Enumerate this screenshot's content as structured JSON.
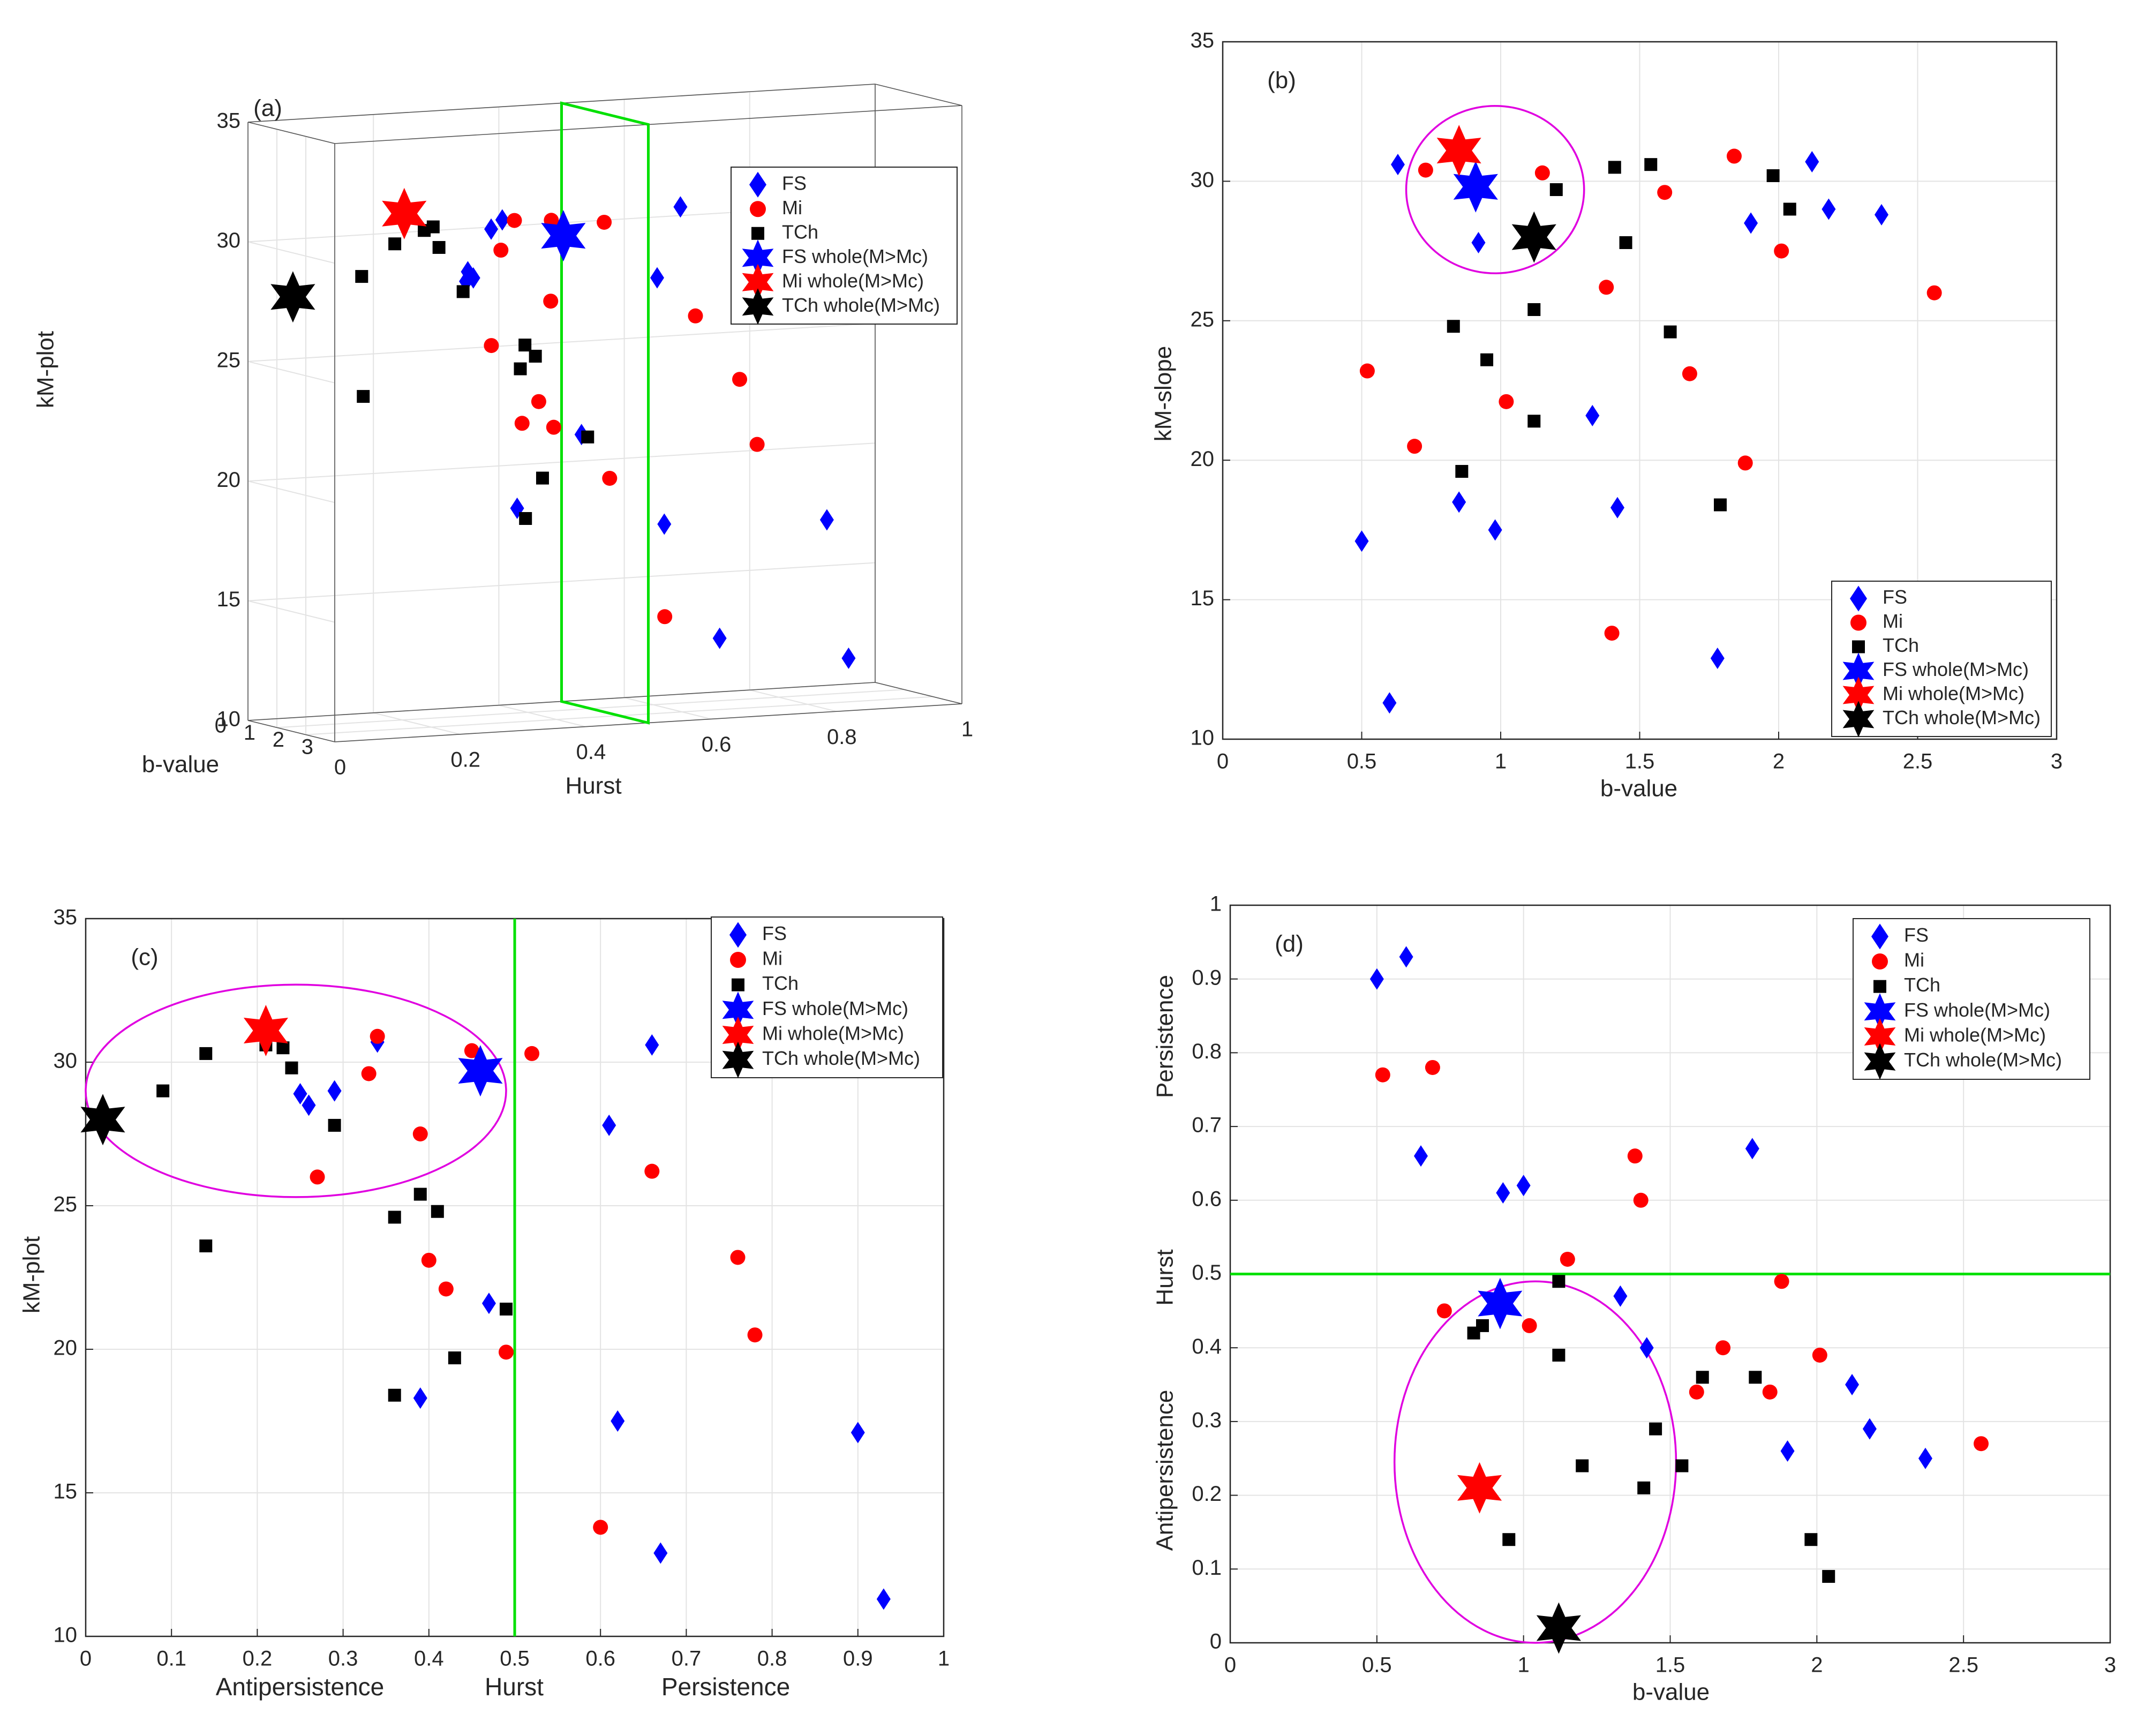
{
  "colors": {
    "FS": "#0000ff",
    "Mi": "#ff0000",
    "TCh": "#000000",
    "line": "#00e000",
    "ellipse": "#e000e0",
    "grid": "#e3e3e3"
  },
  "legend": [
    {
      "key": "FS",
      "label": "FS",
      "marker": "diamond"
    },
    {
      "key": "Mi",
      "label": "Mi",
      "marker": "circle"
    },
    {
      "key": "TCh",
      "label": "TCh",
      "marker": "square"
    },
    {
      "key": "FS",
      "label": "FS whole(M>Mc)",
      "marker": "star"
    },
    {
      "key": "Mi",
      "label": "Mi whole(M>Mc)",
      "marker": "star"
    },
    {
      "key": "TCh",
      "label": "TCh whole(M>Mc)",
      "marker": "star"
    }
  ],
  "chart_data": [
    {
      "id": "a",
      "type": "scatter3d",
      "title": "(a)",
      "xlabel": "Hurst",
      "ylabel": "b-value",
      "zlabel": "kM-plot",
      "xlim": [
        0,
        1
      ],
      "ylim": [
        0,
        3
      ],
      "zlim": [
        10,
        35
      ],
      "xticks": [
        "0",
        "0.2",
        "0.4",
        "0.6",
        "0.8",
        "1"
      ],
      "yticks": [
        "0",
        "1",
        "2",
        "3"
      ],
      "zticks": [
        "10",
        "15",
        "20",
        "25",
        "30",
        "35"
      ],
      "plane": {
        "hurst": 0.5
      },
      "series": [
        {
          "name": "FS",
          "marker": "diamond",
          "points": [
            [
              0.9,
              0.5,
              17.1
            ],
            [
              0.93,
              0.6,
              11.3
            ],
            [
              0.61,
              0.92,
              27.8
            ],
            [
              0.66,
              0.64,
              30.6
            ],
            [
              0.62,
              0.95,
              17.5
            ],
            [
              0.67,
              1.78,
              12.9
            ],
            [
              0.47,
              1.34,
              21.6
            ],
            [
              0.39,
              0.85,
              18.5
            ],
            [
              0.26,
              1.9,
              28.5
            ],
            [
              0.25,
              2.18,
              29.0
            ],
            [
              0.29,
              2.12,
              30.7
            ],
            [
              0.25,
              2.37,
              28.8
            ],
            [
              0.34,
              1.42,
              30.8
            ]
          ]
        },
        {
          "name": "Mi",
          "marker": "circle",
          "points": [
            [
              0.76,
              0.52,
              23.2
            ],
            [
              0.78,
              0.69,
              20.5
            ],
            [
              0.6,
              1.4,
              13.8
            ],
            [
              0.66,
              1.16,
              26.2
            ],
            [
              0.52,
              1.04,
              30.3
            ],
            [
              0.45,
              0.73,
              30.4
            ],
            [
              0.39,
              1.02,
              22.1
            ],
            [
              0.4,
              1.38,
              23.1
            ],
            [
              0.33,
              1.59,
              29.6
            ],
            [
              0.34,
              1.84,
              30.9
            ],
            [
              0.27,
              2.56,
              26.0
            ],
            [
              0.39,
              2.01,
              27.5
            ],
            [
              0.49,
              1.88,
              19.9
            ],
            [
              0.41,
              1.68,
              22.1
            ]
          ]
        },
        {
          "name": "TCh",
          "marker": "square",
          "points": [
            [
              0.14,
              0.95,
              23.6
            ],
            [
              0.09,
              1.98,
              29.0
            ],
            [
              0.14,
              2.04,
              30.3
            ],
            [
              0.21,
              1.54,
              30.6
            ],
            [
              0.24,
              1.4,
              29.8
            ],
            [
              0.29,
              1.15,
              27.8
            ],
            [
              0.24,
              1.2,
              30.6
            ],
            [
              0.42,
              0.83,
              24.8
            ],
            [
              0.36,
              1.61,
              24.6
            ],
            [
              0.39,
              1.12,
              25.4
            ],
            [
              0.36,
              1.79,
              18.4
            ],
            [
              0.43,
              0.86,
              19.7
            ],
            [
              0.49,
              1.12,
              21.4
            ]
          ]
        },
        {
          "name": "FS whole(M>Mc)",
          "marker": "star",
          "points": [
            [
              0.46,
              0.93,
              29.8
            ]
          ]
        },
        {
          "name": "Mi whole(M>Mc)",
          "marker": "star",
          "points": [
            [
              0.21,
              0.85,
              31.1
            ]
          ]
        },
        {
          "name": "TCh whole(M>Mc)",
          "marker": "star",
          "points": [
            [
              0.02,
              1.12,
              28.0
            ]
          ]
        }
      ]
    },
    {
      "id": "b",
      "type": "scatter",
      "title": "(b)",
      "xlabel": "b-value",
      "ylabel": "kM-slope",
      "xlim": [
        0,
        3
      ],
      "ylim": [
        10,
        35
      ],
      "xticks": [
        "0",
        "0.5",
        "1",
        "1.5",
        "2",
        "2.5",
        "3"
      ],
      "yticks": [
        "10",
        "15",
        "20",
        "25",
        "30",
        "35"
      ],
      "ellipse": {
        "cx": 0.98,
        "cy": 29.7,
        "rx": 0.32,
        "ry": 3.0
      },
      "series": [
        {
          "name": "FS",
          "marker": "diamond",
          "points": [
            [
              0.5,
              17.1
            ],
            [
              0.6,
              11.3
            ],
            [
              0.63,
              30.6
            ],
            [
              0.92,
              27.8
            ],
            [
              0.85,
              18.5
            ],
            [
              0.98,
              17.5
            ],
            [
              1.33,
              21.6
            ],
            [
              1.42,
              18.3
            ],
            [
              1.78,
              12.9
            ],
            [
              1.9,
              28.5
            ],
            [
              2.12,
              30.7
            ],
            [
              2.18,
              29.0
            ],
            [
              2.37,
              28.8
            ]
          ]
        },
        {
          "name": "Mi",
          "marker": "circle",
          "points": [
            [
              0.52,
              23.2
            ],
            [
              0.69,
              20.5
            ],
            [
              0.73,
              30.4
            ],
            [
              1.02,
              22.1
            ],
            [
              1.15,
              30.3
            ],
            [
              1.38,
              26.2
            ],
            [
              1.4,
              13.8
            ],
            [
              1.59,
              29.6
            ],
            [
              1.68,
              23.1
            ],
            [
              1.84,
              30.9
            ],
            [
              1.88,
              19.9
            ],
            [
              2.01,
              27.5
            ],
            [
              2.56,
              26.0
            ]
          ]
        },
        {
          "name": "TCh",
          "marker": "square",
          "points": [
            [
              0.83,
              24.8
            ],
            [
              0.86,
              19.6
            ],
            [
              0.95,
              23.6
            ],
            [
              1.12,
              25.4
            ],
            [
              1.12,
              21.4
            ],
            [
              1.2,
              29.7
            ],
            [
              1.41,
              30.5
            ],
            [
              1.45,
              27.8
            ],
            [
              1.54,
              30.6
            ],
            [
              1.61,
              24.6
            ],
            [
              1.79,
              18.4
            ],
            [
              1.98,
              30.2
            ],
            [
              2.04,
              29.0
            ]
          ]
        },
        {
          "name": "FS whole(M>Mc)",
          "marker": "star",
          "points": [
            [
              0.91,
              29.8
            ]
          ]
        },
        {
          "name": "Mi whole(M>Mc)",
          "marker": "star",
          "points": [
            [
              0.85,
              31.1
            ]
          ]
        },
        {
          "name": "TCh whole(M>Mc)",
          "marker": "star",
          "points": [
            [
              1.12,
              28.0
            ]
          ]
        }
      ]
    },
    {
      "id": "c",
      "type": "scatter",
      "title": "(c)",
      "xlabel": "Hurst",
      "xlabel_left": "Antipersistence",
      "xlabel_right": "Persistence",
      "ylabel": "kM-plot",
      "xlim": [
        0,
        1
      ],
      "ylim": [
        10,
        35
      ],
      "xticks": [
        "0",
        "0.1",
        "0.2",
        "0.3",
        "0.4",
        "0.5",
        "0.6",
        "0.7",
        "0.8",
        "0.9",
        "1"
      ],
      "yticks": [
        "10",
        "15",
        "20",
        "25",
        "30",
        "35"
      ],
      "vline": 0.5,
      "ellipse": {
        "cx": 0.245,
        "cy": 29.0,
        "rx": 0.245,
        "ry": 3.7
      },
      "series": [
        {
          "name": "FS",
          "marker": "diamond",
          "points": [
            [
              0.9,
              17.1
            ],
            [
              0.93,
              11.3
            ],
            [
              0.61,
              27.8
            ],
            [
              0.66,
              30.6
            ],
            [
              0.62,
              17.5
            ],
            [
              0.67,
              12.9
            ],
            [
              0.47,
              21.6
            ],
            [
              0.39,
              18.3
            ],
            [
              0.26,
              28.5
            ],
            [
              0.25,
              28.9
            ],
            [
              0.29,
              29.0
            ],
            [
              0.34,
              30.7
            ]
          ]
        },
        {
          "name": "Mi",
          "marker": "circle",
          "points": [
            [
              0.76,
              23.2
            ],
            [
              0.78,
              20.5
            ],
            [
              0.6,
              13.8
            ],
            [
              0.66,
              26.2
            ],
            [
              0.52,
              30.3
            ],
            [
              0.45,
              30.4
            ],
            [
              0.39,
              27.5
            ],
            [
              0.4,
              23.1
            ],
            [
              0.42,
              22.1
            ],
            [
              0.33,
              29.6
            ],
            [
              0.34,
              30.9
            ],
            [
              0.27,
              26.0
            ],
            [
              0.49,
              19.9
            ]
          ]
        },
        {
          "name": "TCh",
          "marker": "square",
          "points": [
            [
              0.14,
              23.6
            ],
            [
              0.09,
              29.0
            ],
            [
              0.14,
              30.3
            ],
            [
              0.21,
              30.6
            ],
            [
              0.23,
              30.5
            ],
            [
              0.24,
              29.8
            ],
            [
              0.29,
              27.8
            ],
            [
              0.36,
              24.6
            ],
            [
              0.39,
              25.4
            ],
            [
              0.41,
              24.8
            ],
            [
              0.36,
              18.4
            ],
            [
              0.43,
              19.7
            ],
            [
              0.49,
              21.4
            ]
          ]
        },
        {
          "name": "FS whole(M>Mc)",
          "marker": "star",
          "points": [
            [
              0.46,
              29.7
            ]
          ]
        },
        {
          "name": "Mi whole(M>Mc)",
          "marker": "star",
          "points": [
            [
              0.21,
              31.1
            ]
          ]
        },
        {
          "name": "TCh whole(M>Mc)",
          "marker": "star",
          "points": [
            [
              0.02,
              28.0
            ]
          ]
        }
      ]
    },
    {
      "id": "d",
      "type": "scatter",
      "title": "(d)",
      "xlabel": "b-value",
      "ylabel": "Hurst",
      "ylabel_top": "Persistence",
      "ylabel_bottom": "Antipersistence",
      "xlim": [
        0,
        3
      ],
      "ylim": [
        0,
        1
      ],
      "xticks": [
        "0",
        "0.5",
        "1",
        "1.5",
        "2",
        "2.5",
        "3"
      ],
      "yticks": [
        "0",
        "0.1",
        "0.2",
        "0.3",
        "0.4",
        "0.5",
        "0.6",
        "0.7",
        "0.8",
        "0.9",
        "1"
      ],
      "hline": 0.5,
      "ellipse": {
        "cx": 1.04,
        "cy": 0.245,
        "rx": 0.48,
        "ry": 0.245
      },
      "series": [
        {
          "name": "FS",
          "marker": "diamond",
          "points": [
            [
              0.5,
              0.9
            ],
            [
              0.6,
              0.93
            ],
            [
              0.65,
              0.66
            ],
            [
              0.93,
              0.61
            ],
            [
              1.0,
              0.62
            ],
            [
              1.33,
              0.47
            ],
            [
              1.42,
              0.4
            ],
            [
              1.78,
              0.67
            ],
            [
              1.9,
              0.26
            ],
            [
              2.12,
              0.35
            ],
            [
              2.18,
              0.29
            ],
            [
              2.37,
              0.25
            ]
          ]
        },
        {
          "name": "Mi",
          "marker": "circle",
          "points": [
            [
              0.52,
              0.77
            ],
            [
              0.69,
              0.78
            ],
            [
              0.73,
              0.45
            ],
            [
              1.02,
              0.43
            ],
            [
              1.15,
              0.52
            ],
            [
              1.38,
              0.66
            ],
            [
              1.4,
              0.6
            ],
            [
              1.59,
              0.34
            ],
            [
              1.68,
              0.4
            ],
            [
              1.84,
              0.34
            ],
            [
              1.88,
              0.49
            ],
            [
              2.01,
              0.39
            ],
            [
              2.56,
              0.27
            ]
          ]
        },
        {
          "name": "TCh",
          "marker": "square",
          "points": [
            [
              0.83,
              0.42
            ],
            [
              0.86,
              0.43
            ],
            [
              0.95,
              0.14
            ],
            [
              1.12,
              0.49
            ],
            [
              1.12,
              0.39
            ],
            [
              1.2,
              0.24
            ],
            [
              1.41,
              0.21
            ],
            [
              1.45,
              0.29
            ],
            [
              1.54,
              0.24
            ],
            [
              1.61,
              0.36
            ],
            [
              1.79,
              0.36
            ],
            [
              1.98,
              0.14
            ],
            [
              2.04,
              0.09
            ]
          ]
        },
        {
          "name": "FS whole(M>Mc)",
          "marker": "star",
          "points": [
            [
              0.92,
              0.46
            ]
          ]
        },
        {
          "name": "Mi whole(M>Mc)",
          "marker": "star",
          "points": [
            [
              0.85,
              0.21
            ]
          ]
        },
        {
          "name": "TCh whole(M>Mc)",
          "marker": "star",
          "points": [
            [
              1.12,
              0.02
            ]
          ]
        }
      ]
    }
  ]
}
